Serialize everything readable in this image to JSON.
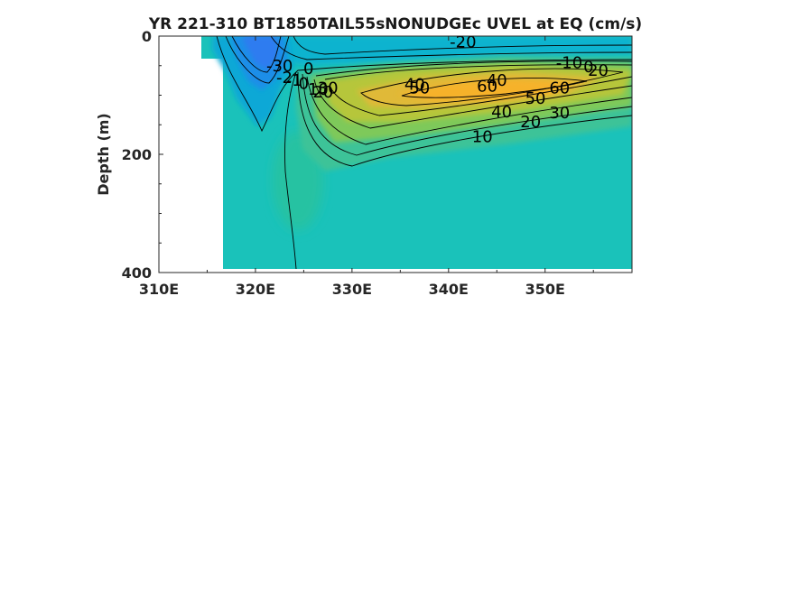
{
  "chart_data": {
    "type": "contour",
    "title": "YR 221-310 BT1850TAIL55sNONUDGEc UVEL at EQ (cm/s)",
    "ylabel": "Depth (m)",
    "xlabel": "",
    "xlim": [
      310,
      359
    ],
    "ylim": [
      0,
      400
    ],
    "y_reversed": true,
    "x_ticks": [
      {
        "value": 310,
        "label": "310E"
      },
      {
        "value": 320,
        "label": "320E"
      },
      {
        "value": 330,
        "label": "330E"
      },
      {
        "value": 340,
        "label": "340E"
      },
      {
        "value": 350,
        "label": "350E"
      }
    ],
    "y_ticks": [
      {
        "value": 0,
        "label": "0"
      },
      {
        "value": 200,
        "label": "200"
      },
      {
        "value": 400,
        "label": "400"
      }
    ],
    "contour_levels": [
      -30,
      -20,
      -10,
      0,
      10,
      20,
      30,
      40,
      50,
      60
    ],
    "features": [
      {
        "name": "westward surface flow core",
        "lon": 321.5,
        "depth": 40,
        "value": -35
      },
      {
        "name": "equatorial undercurrent core",
        "lon": 339,
        "depth": 95,
        "value": 68
      }
    ],
    "contour_labels": [
      {
        "text": "-20",
        "lon": 341.5,
        "depth": 10
      },
      {
        "text": "-30",
        "lon": 322.5,
        "depth": 50
      },
      {
        "text": "0",
        "lon": 325.5,
        "depth": 55
      },
      {
        "text": "-2",
        "lon": 323.0,
        "depth": 70
      },
      {
        "text": "-1",
        "lon": 324.0,
        "depth": 75
      },
      {
        "text": "0",
        "lon": 325.0,
        "depth": 80
      },
      {
        "text": "10",
        "lon": 326.5,
        "depth": 90
      },
      {
        "text": "20",
        "lon": 327.0,
        "depth": 95
      },
      {
        "text": "30",
        "lon": 327.5,
        "depth": 88
      },
      {
        "text": "40",
        "lon": 336.5,
        "depth": 82
      },
      {
        "text": "50",
        "lon": 337.0,
        "depth": 88
      },
      {
        "text": "40",
        "lon": 345.0,
        "depth": 75
      },
      {
        "text": "60",
        "lon": 344.0,
        "depth": 85
      },
      {
        "text": "60",
        "lon": 351.5,
        "depth": 88
      },
      {
        "text": "50",
        "lon": 349.0,
        "depth": 105
      },
      {
        "text": "40",
        "lon": 345.5,
        "depth": 128
      },
      {
        "text": "20",
        "lon": 348.5,
        "depth": 145
      },
      {
        "text": "30",
        "lon": 351.5,
        "depth": 130
      },
      {
        "text": "10",
        "lon": 343.5,
        "depth": 170
      },
      {
        "text": "-10",
        "lon": 352.5,
        "depth": 45
      },
      {
        "text": "0",
        "lon": 354.5,
        "depth": 52
      },
      {
        "text": "20",
        "lon": 355.5,
        "depth": 58
      }
    ],
    "grid": false,
    "legend": "none"
  }
}
